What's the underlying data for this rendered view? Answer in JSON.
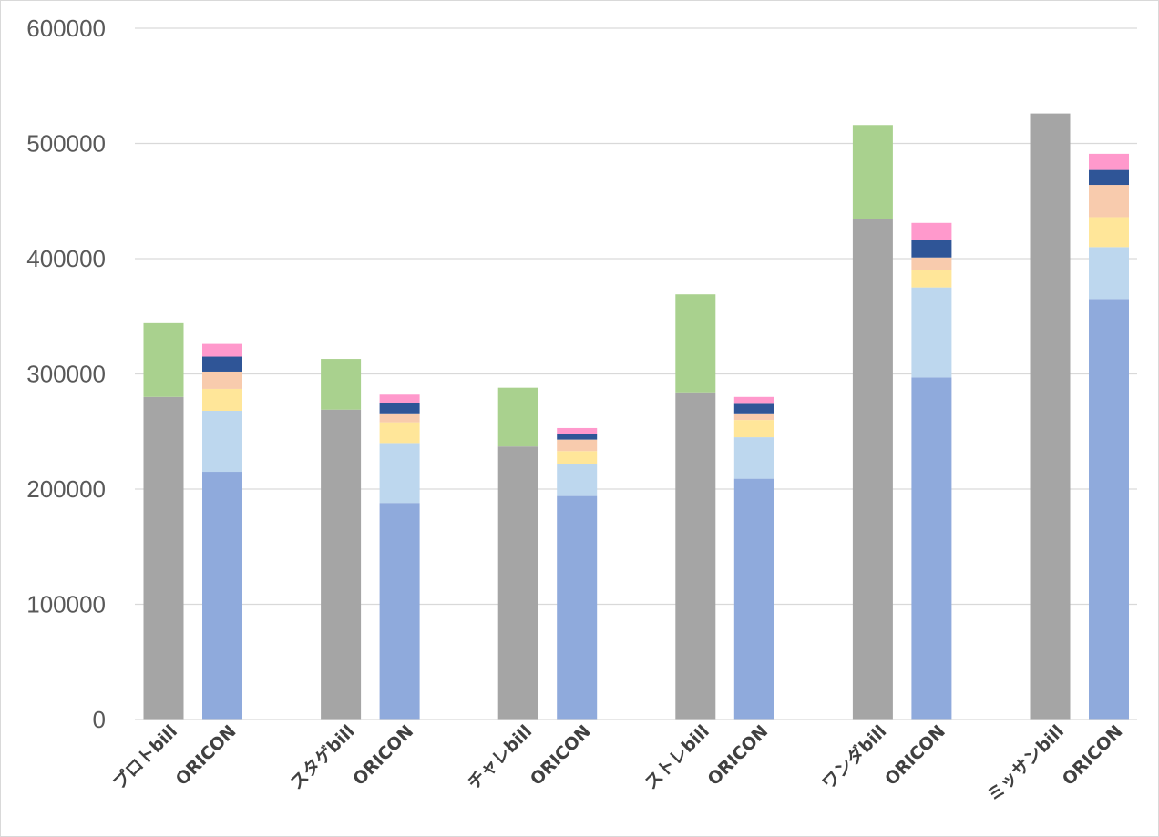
{
  "chart_data": {
    "type": "bar",
    "stacked": true,
    "title": "",
    "xlabel": "",
    "ylabel": "",
    "ylim": [
      0,
      600000
    ],
    "yticks": [
      0,
      100000,
      200000,
      300000,
      400000,
      500000,
      600000
    ],
    "grid": true,
    "legend": "none",
    "categories": [
      "プロトbill",
      "ORICON",
      "スタゲbill",
      "ORICON",
      "チャレbill",
      "ORICON",
      "ストレbill",
      "ORICON",
      "ワンダbill",
      "ORICON",
      "ミッサンbill",
      "ORICON"
    ],
    "series": [
      {
        "color": "#a5a5a5",
        "values": [
          280000,
          0,
          269000,
          0,
          237000,
          0,
          284000,
          0,
          434000,
          0,
          526000,
          0
        ]
      },
      {
        "color": "#a9d18e",
        "values": [
          64000,
          0,
          44000,
          0,
          51000,
          0,
          85000,
          0,
          82000,
          0,
          0,
          0
        ]
      },
      {
        "color": "#8faadc",
        "values": [
          0,
          215000,
          0,
          188000,
          0,
          194000,
          0,
          209000,
          0,
          297000,
          0,
          365000
        ]
      },
      {
        "color": "#bdd7ee",
        "values": [
          0,
          53000,
          0,
          52000,
          0,
          28000,
          0,
          36000,
          0,
          78000,
          0,
          45000
        ]
      },
      {
        "color": "#ffe699",
        "values": [
          0,
          19000,
          0,
          18000,
          0,
          11000,
          0,
          15000,
          0,
          15000,
          0,
          26000
        ]
      },
      {
        "color": "#f8cbad",
        "values": [
          0,
          15000,
          0,
          7000,
          0,
          10000,
          0,
          5000,
          0,
          11000,
          0,
          28000
        ]
      },
      {
        "color": "#2f5597",
        "values": [
          0,
          13000,
          0,
          10000,
          0,
          5000,
          0,
          9000,
          0,
          15000,
          0,
          13000
        ]
      },
      {
        "color": "#ff99cc",
        "values": [
          0,
          11000,
          0,
          7000,
          0,
          5000,
          0,
          6000,
          0,
          15000,
          0,
          14000
        ]
      }
    ]
  }
}
